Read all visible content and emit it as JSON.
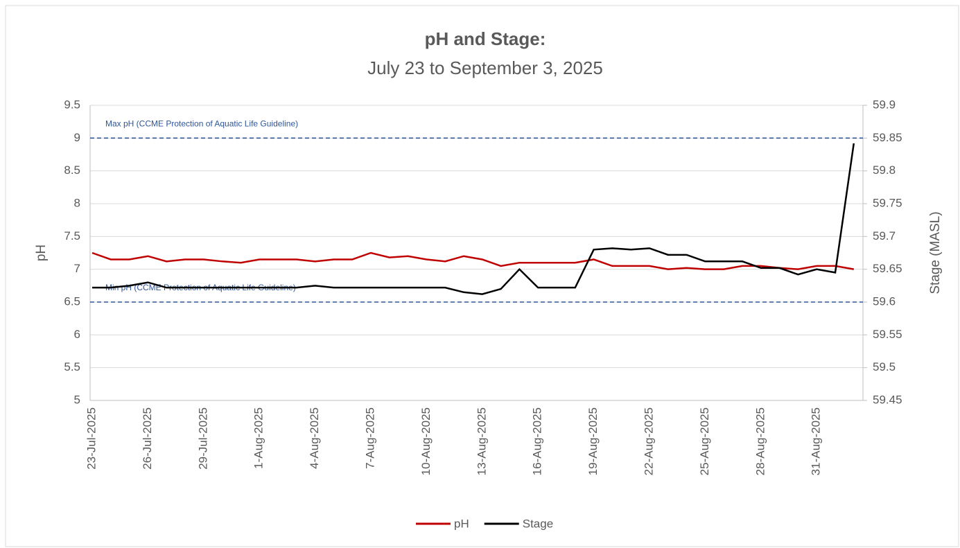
{
  "chart_data": {
    "type": "line",
    "title": "pH and Stage:",
    "subtitle": "July 23 to September 3, 2025",
    "y_label": "pH",
    "y2_label": "Stage (MASL)",
    "x": [
      "23-Jul-2025",
      "24-Jul-2025",
      "25-Jul-2025",
      "26-Jul-2025",
      "27-Jul-2025",
      "28-Jul-2025",
      "29-Jul-2025",
      "30-Jul-2025",
      "31-Jul-2025",
      "1-Aug-2025",
      "2-Aug-2025",
      "3-Aug-2025",
      "4-Aug-2025",
      "5-Aug-2025",
      "6-Aug-2025",
      "7-Aug-2025",
      "8-Aug-2025",
      "9-Aug-2025",
      "10-Aug-2025",
      "11-Aug-2025",
      "12-Aug-2025",
      "13-Aug-2025",
      "14-Aug-2025",
      "15-Aug-2025",
      "16-Aug-2025",
      "17-Aug-2025",
      "18-Aug-2025",
      "19-Aug-2025",
      "20-Aug-2025",
      "21-Aug-2025",
      "22-Aug-2025",
      "23-Aug-2025",
      "24-Aug-2025",
      "25-Aug-2025",
      "26-Aug-2025",
      "27-Aug-2025",
      "28-Aug-2025",
      "29-Aug-2025",
      "30-Aug-2025",
      "31-Aug-2025",
      "1-Sep-2025",
      "2-Sep-2025"
    ],
    "xticks": [
      "23-Jul-2025",
      "26-Jul-2025",
      "29-Jul-2025",
      "1-Aug-2025",
      "4-Aug-2025",
      "7-Aug-2025",
      "10-Aug-2025",
      "13-Aug-2025",
      "16-Aug-2025",
      "19-Aug-2025",
      "22-Aug-2025",
      "25-Aug-2025",
      "28-Aug-2025",
      "31-Aug-2025"
    ],
    "series": [
      {
        "name": "pH",
        "color": "#c00000",
        "values": [
          7.25,
          7.15,
          7.15,
          7.2,
          7.12,
          7.15,
          7.15,
          7.12,
          7.1,
          7.15,
          7.15,
          7.15,
          7.12,
          7.15,
          7.15,
          7.25,
          7.18,
          7.2,
          7.15,
          7.12,
          7.2,
          7.15,
          7.05,
          7.1,
          7.1,
          7.1,
          7.1,
          7.15,
          7.05,
          7.05,
          7.05,
          7.0,
          7.02,
          7.0,
          7.0,
          7.05,
          7.05,
          7.02,
          7.0,
          7.05,
          7.05,
          7.0
        ]
      },
      {
        "name": "Stage",
        "color": "#000000",
        "axis": "y2",
        "values": [
          59.622,
          59.622,
          59.625,
          59.63,
          59.622,
          59.622,
          59.622,
          59.622,
          59.622,
          59.622,
          59.622,
          59.622,
          59.625,
          59.622,
          59.622,
          59.622,
          59.622,
          59.622,
          59.622,
          59.622,
          59.615,
          59.612,
          59.62,
          59.65,
          59.622,
          59.622,
          59.622,
          59.68,
          59.682,
          59.68,
          59.682,
          59.672,
          59.672,
          59.662,
          59.662,
          59.662,
          59.652,
          59.652,
          59.642,
          59.65,
          59.645,
          59.842
        ]
      }
    ],
    "reference_lines": [
      {
        "value": 9,
        "label": "Max pH (CCME Protection of Aquatic Life Guideline)",
        "color": "#2f5597"
      },
      {
        "value": 6.5,
        "label": "Min pH (CCME  Protection of Aquatic Life Guideline)",
        "color": "#2f5597"
      }
    ],
    "ylim": [
      5,
      9.5
    ],
    "yticks": [
      5,
      5.5,
      6,
      6.5,
      7,
      7.5,
      8,
      8.5,
      9,
      9.5
    ],
    "y2lim": [
      59.45,
      59.9
    ],
    "y2ticks": [
      59.45,
      59.5,
      59.55,
      59.6,
      59.65,
      59.7,
      59.75,
      59.8,
      59.85,
      59.9
    ],
    "grid": true,
    "legend": "bottom"
  }
}
